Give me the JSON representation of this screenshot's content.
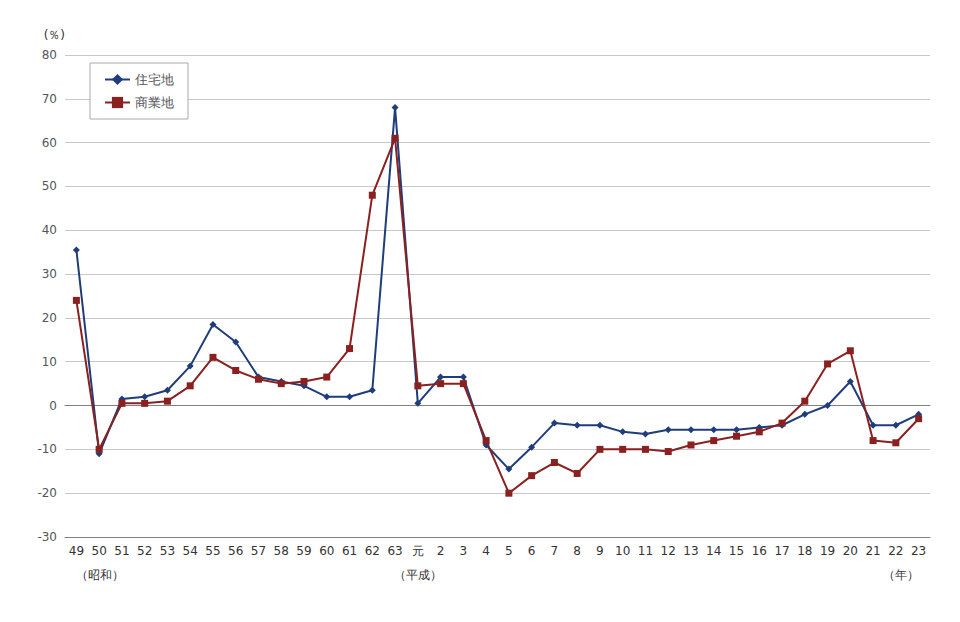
{
  "chart_data": {
    "type": "line",
    "ylabel": "(％)",
    "categories": [
      "49",
      "50",
      "51",
      "52",
      "53",
      "54",
      "55",
      "56",
      "57",
      "58",
      "59",
      "60",
      "61",
      "62",
      "63",
      "元",
      "2",
      "3",
      "4",
      "5",
      "6",
      "7",
      "8",
      "9",
      "10",
      "11",
      "12",
      "13",
      "14",
      "15",
      "16",
      "17",
      "18",
      "19",
      "20",
      "21",
      "22",
      "23"
    ],
    "series": [
      {
        "name": "住宅地",
        "color": "#1f3d7a",
        "marker": "diamond",
        "values": [
          35.5,
          -11.0,
          1.5,
          2.0,
          3.5,
          9.0,
          18.5,
          14.5,
          6.5,
          5.5,
          4.5,
          2.0,
          2.0,
          3.5,
          68.0,
          0.5,
          6.5,
          6.5,
          -9.0,
          -14.5,
          -9.5,
          -4.0,
          -4.5,
          -4.5,
          -6.0,
          -6.5,
          -5.5,
          -5.5,
          -5.5,
          -5.5,
          -5.0,
          -4.5,
          -2.0,
          0.0,
          5.5,
          -4.5,
          -4.5,
          -2.0
        ]
      },
      {
        "name": "商業地",
        "color": "#8b2020",
        "marker": "square",
        "values": [
          24.0,
          -10.0,
          0.5,
          0.5,
          1.0,
          4.5,
          11.0,
          8.0,
          6.0,
          5.0,
          5.5,
          6.5,
          13.0,
          48.0,
          61.0,
          4.5,
          5.0,
          5.0,
          -8.0,
          -20.0,
          -16.0,
          -13.0,
          -15.5,
          -10.0,
          -10.0,
          -10.0,
          -10.5,
          -9.0,
          -8.0,
          -7.0,
          -6.0,
          -4.0,
          1.0,
          9.5,
          12.5,
          -8.0,
          -8.5,
          -3.0
        ]
      }
    ],
    "ylim": [
      -30,
      80
    ],
    "yticks": [
      -30,
      -20,
      -10,
      0,
      10,
      20,
      30,
      40,
      50,
      60,
      70,
      80
    ],
    "grid": true,
    "legend": "upper left",
    "annotations": [
      {
        "text": "（昭和）",
        "x": "49"
      },
      {
        "text": "（平成）",
        "x": "元"
      },
      {
        "text": "（年）",
        "x": "23"
      }
    ]
  }
}
